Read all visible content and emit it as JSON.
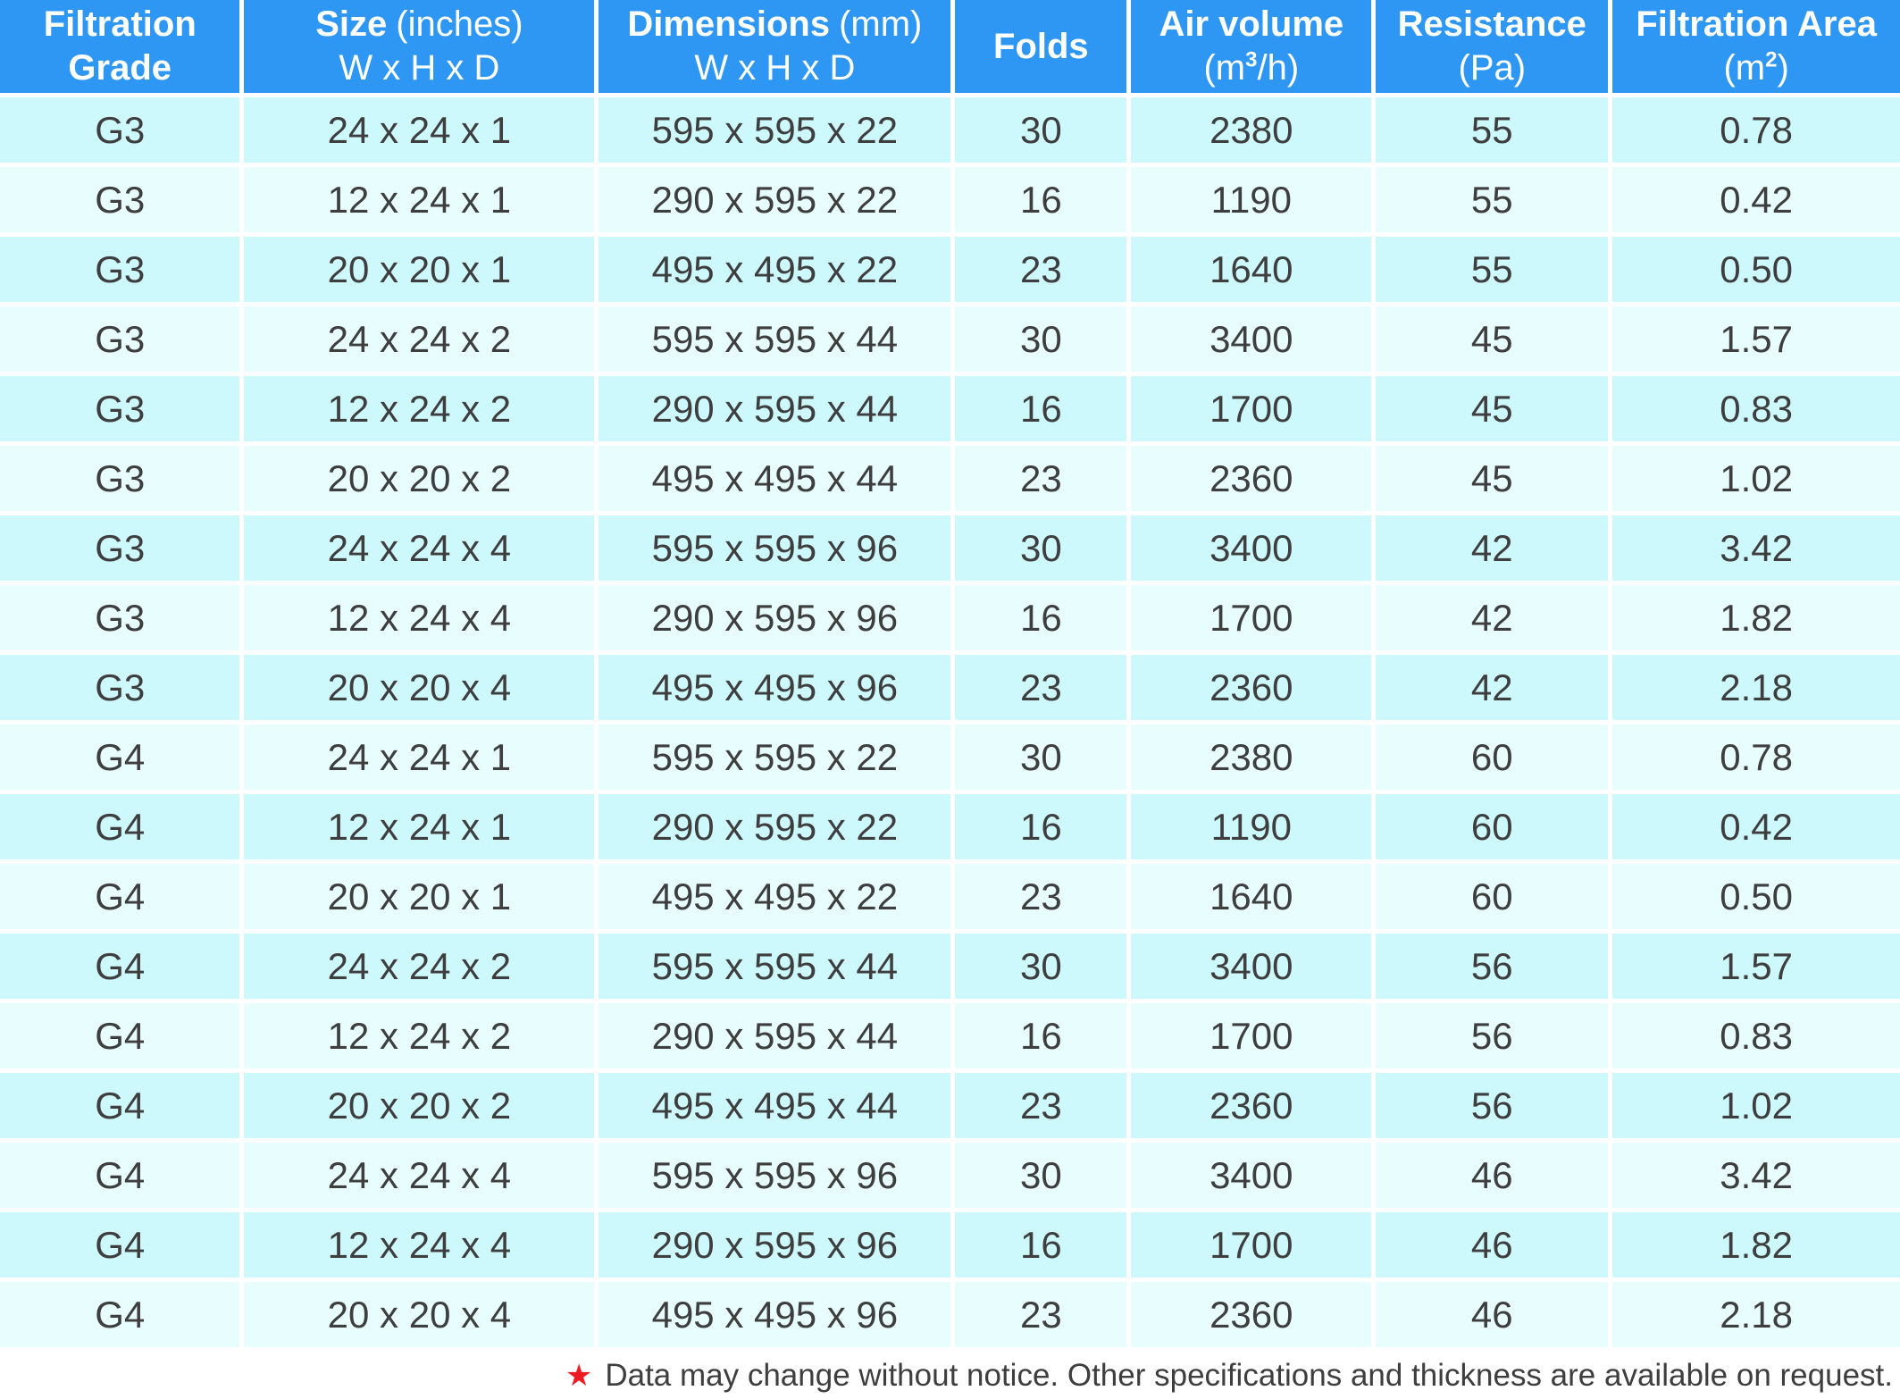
{
  "colors": {
    "header_bg": "#2e96f3",
    "row_odd": "#cdf8fc",
    "row_even": "#e7fdfe",
    "text": "#3e3e3e",
    "star_red": "#ed1c24",
    "divider_white": "#ffffff"
  },
  "header": {
    "cols": [
      {
        "line1": "Filtration",
        "line2": "Grade"
      },
      {
        "line1": "Size",
        "line1_note": "(inches)",
        "line2": "W x H x D"
      },
      {
        "line1": "Dimensions",
        "line1_note": "(mm)",
        "line2": "W x H x D"
      },
      {
        "line1": "Folds"
      },
      {
        "line1": "Air volume",
        "unit_pre": "(m",
        "unit_sup": "3",
        "unit_post": "/h)"
      },
      {
        "line1": "Resistance",
        "unit_pre": "(Pa)"
      },
      {
        "line1": "Filtration Area",
        "unit_pre": "(m",
        "unit_sup": "2",
        "unit_post": ")"
      }
    ]
  },
  "table": {
    "rows": [
      {
        "grade": "G3",
        "size": "24 x 24 x 1",
        "dimensions": "595 x 595 x 22",
        "folds": "30",
        "air_volume": "2380",
        "resistance": "55",
        "area": "0.78"
      },
      {
        "grade": "G3",
        "size": "12 x 24 x 1",
        "dimensions": "290 x 595 x 22",
        "folds": "16",
        "air_volume": "1190",
        "resistance": "55",
        "area": "0.42"
      },
      {
        "grade": "G3",
        "size": "20 x 20 x 1",
        "dimensions": "495 x 495 x 22",
        "folds": "23",
        "air_volume": "1640",
        "resistance": "55",
        "area": "0.50"
      },
      {
        "grade": "G3",
        "size": "24 x 24 x 2",
        "dimensions": "595 x 595 x 44",
        "folds": "30",
        "air_volume": "3400",
        "resistance": "45",
        "area": "1.57"
      },
      {
        "grade": "G3",
        "size": "12 x 24 x 2",
        "dimensions": "290 x 595 x 44",
        "folds": "16",
        "air_volume": "1700",
        "resistance": "45",
        "area": "0.83"
      },
      {
        "grade": "G3",
        "size": "20 x 20 x 2",
        "dimensions": "495 x 495 x 44",
        "folds": "23",
        "air_volume": "2360",
        "resistance": "45",
        "area": "1.02"
      },
      {
        "grade": "G3",
        "size": "24 x 24 x 4",
        "dimensions": "595 x 595 x 96",
        "folds": "30",
        "air_volume": "3400",
        "resistance": "42",
        "area": "3.42"
      },
      {
        "grade": "G3",
        "size": "12 x 24 x 4",
        "dimensions": "290 x 595 x 96",
        "folds": "16",
        "air_volume": "1700",
        "resistance": "42",
        "area": "1.82"
      },
      {
        "grade": "G3",
        "size": "20 x 20 x 4",
        "dimensions": "495 x 495 x 96",
        "folds": "23",
        "air_volume": "2360",
        "resistance": "42",
        "area": "2.18"
      },
      {
        "grade": "G4",
        "size": "24 x 24 x 1",
        "dimensions": "595 x 595 x 22",
        "folds": "30",
        "air_volume": "2380",
        "resistance": "60",
        "area": "0.78"
      },
      {
        "grade": "G4",
        "size": "12 x 24 x 1",
        "dimensions": "290 x 595 x 22",
        "folds": "16",
        "air_volume": "1190",
        "resistance": "60",
        "area": "0.42"
      },
      {
        "grade": "G4",
        "size": "20 x 20 x 1",
        "dimensions": "495 x 495 x 22",
        "folds": "23",
        "air_volume": "1640",
        "resistance": "60",
        "area": "0.50"
      },
      {
        "grade": "G4",
        "size": "24 x 24 x 2",
        "dimensions": "595 x 595 x 44",
        "folds": "30",
        "air_volume": "3400",
        "resistance": "56",
        "area": "1.57"
      },
      {
        "grade": "G4",
        "size": "12 x 24 x 2",
        "dimensions": "290 x 595 x 44",
        "folds": "16",
        "air_volume": "1700",
        "resistance": "56",
        "area": "0.83"
      },
      {
        "grade": "G4",
        "size": "20 x 20 x 2",
        "dimensions": "495 x 495 x 44",
        "folds": "23",
        "air_volume": "2360",
        "resistance": "56",
        "area": "1.02"
      },
      {
        "grade": "G4",
        "size": "24 x 24 x 4",
        "dimensions": "595 x 595 x 96",
        "folds": "30",
        "air_volume": "3400",
        "resistance": "46",
        "area": "3.42"
      },
      {
        "grade": "G4",
        "size": "12 x 24 x 4",
        "dimensions": "290 x 595 x 96",
        "folds": "16",
        "air_volume": "1700",
        "resistance": "46",
        "area": "1.82"
      },
      {
        "grade": "G4",
        "size": "20 x 20 x 4",
        "dimensions": "495 x 495 x 96",
        "folds": "23",
        "air_volume": "2360",
        "resistance": "46",
        "area": "2.18"
      }
    ]
  },
  "footnote": {
    "star": "★",
    "text": "Data may change without notice. Other specifications and thickness are available on request."
  },
  "chart_data": {
    "type": "table",
    "columns": [
      "Filtration Grade",
      "Size (inches) W x H x D",
      "Dimensions (mm) W x H x D",
      "Folds",
      "Air volume (m³/h)",
      "Resistance (Pa)",
      "Filtration Area (m²)"
    ],
    "rows": [
      [
        "G3",
        "24 x 24 x 1",
        "595 x 595 x 22",
        30,
        2380,
        55,
        0.78
      ],
      [
        "G3",
        "12 x 24 x 1",
        "290 x 595 x 22",
        16,
        1190,
        55,
        0.42
      ],
      [
        "G3",
        "20 x 20 x 1",
        "495 x 495 x 22",
        23,
        1640,
        55,
        0.5
      ],
      [
        "G3",
        "24 x 24 x 2",
        "595 x 595 x 44",
        30,
        3400,
        45,
        1.57
      ],
      [
        "G3",
        "12 x 24 x 2",
        "290 x 595 x 44",
        16,
        1700,
        45,
        0.83
      ],
      [
        "G3",
        "20 x 20 x 2",
        "495 x 495 x 44",
        23,
        2360,
        45,
        1.02
      ],
      [
        "G3",
        "24 x 24 x 4",
        "595 x 595 x 96",
        30,
        3400,
        42,
        3.42
      ],
      [
        "G3",
        "12 x 24 x 4",
        "290 x 595 x 96",
        16,
        1700,
        42,
        1.82
      ],
      [
        "G3",
        "20 x 20 x 4",
        "495 x 495 x 96",
        23,
        2360,
        42,
        2.18
      ],
      [
        "G4",
        "24 x 24 x 1",
        "595 x 595 x 22",
        30,
        2380,
        60,
        0.78
      ],
      [
        "G4",
        "12 x 24 x 1",
        "290 x 595 x 22",
        16,
        1190,
        60,
        0.42
      ],
      [
        "G4",
        "20 x 20 x 1",
        "495 x 495 x 22",
        23,
        1640,
        60,
        0.5
      ],
      [
        "G4",
        "24 x 24 x 2",
        "595 x 595 x 44",
        30,
        3400,
        56,
        1.57
      ],
      [
        "G4",
        "12 x 24 x 2",
        "290 x 595 x 44",
        16,
        1700,
        56,
        0.83
      ],
      [
        "G4",
        "20 x 20 x 2",
        "495 x 495 x 44",
        23,
        2360,
        56,
        1.02
      ],
      [
        "G4",
        "24 x 24 x 4",
        "595 x 595 x 96",
        30,
        3400,
        46,
        3.42
      ],
      [
        "G4",
        "12 x 24 x 4",
        "290 x 595 x 96",
        16,
        1700,
        46,
        1.82
      ],
      [
        "G4",
        "20 x 20 x 4",
        "495 x 495 x 96",
        23,
        2360,
        46,
        2.18
      ]
    ]
  }
}
